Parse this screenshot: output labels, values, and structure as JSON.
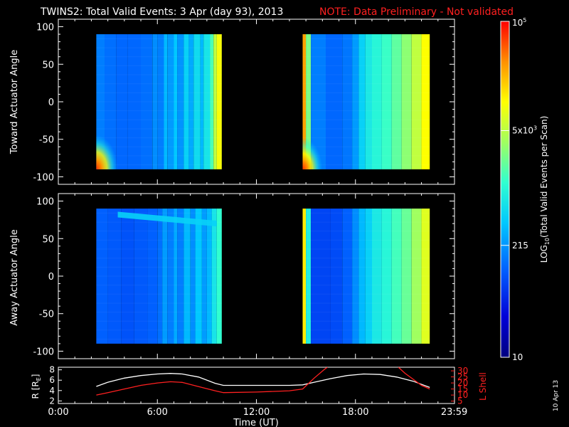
{
  "header": {
    "title": "TWINS2: Total Valid Events:  3 Apr (day  93), 2013",
    "note": "NOTE: Data Preliminary - Not validated",
    "title_color": "#ffffff",
    "note_color": "#ff2020"
  },
  "footer": {
    "date_stamp": "10 Apr 13"
  },
  "chart_data": [
    {
      "type": "heatmap",
      "panel": "toward",
      "ylabel": "Toward Actuator Angle",
      "ylim": [
        -110,
        110
      ],
      "yticks": [
        100,
        50,
        0,
        -50,
        -100
      ],
      "ytick_labels": [
        "100",
        "50",
        "0",
        "-50",
        "-100"
      ],
      "xlim_hours": [
        0,
        24
      ],
      "data_extent": {
        "angle_min": -90,
        "angle_max": 90
      },
      "segments": [
        {
          "start_h": 2.3,
          "end_h": 9.9,
          "columns": [
            [
              2.3,
              0.3
            ],
            [
              2.8,
              0.28
            ],
            [
              3.5,
              0.27
            ],
            [
              4.2,
              0.27
            ],
            [
              5.0,
              0.28
            ],
            [
              5.7,
              0.32
            ],
            [
              6.0,
              0.3
            ],
            [
              6.4,
              0.38
            ],
            [
              6.6,
              0.34
            ],
            [
              7.0,
              0.4
            ],
            [
              7.2,
              0.33
            ],
            [
              7.6,
              0.42
            ],
            [
              7.9,
              0.36
            ],
            [
              8.2,
              0.44
            ],
            [
              8.6,
              0.38
            ],
            [
              8.8,
              0.46
            ],
            [
              9.2,
              0.55
            ],
            [
              9.4,
              0.68
            ],
            [
              9.6,
              0.75
            ]
          ],
          "low_angle_enhancement": {
            "start_h": 2.3,
            "end_h": 3.6,
            "peak_value": 0.92
          }
        },
        {
          "start_h": 14.8,
          "end_h": 22.5,
          "columns": [
            [
              14.8,
              0.86
            ],
            [
              15.0,
              0.6
            ],
            [
              15.3,
              0.3
            ],
            [
              16.2,
              0.27
            ],
            [
              17.2,
              0.29
            ],
            [
              17.8,
              0.34
            ],
            [
              18.2,
              0.42
            ],
            [
              18.6,
              0.47
            ],
            [
              19.0,
              0.5
            ],
            [
              19.6,
              0.53
            ],
            [
              20.2,
              0.57
            ],
            [
              20.8,
              0.62
            ],
            [
              21.4,
              0.68
            ],
            [
              22.0,
              0.76
            ]
          ],
          "low_angle_enhancement": {
            "start_h": 14.8,
            "end_h": 16.0,
            "peak_value": 0.88
          }
        }
      ]
    },
    {
      "type": "heatmap",
      "panel": "away",
      "ylabel": "Away Actuator Angle",
      "ylim": [
        -110,
        110
      ],
      "yticks": [
        100,
        50,
        0,
        -50,
        -100
      ],
      "ytick_labels": [
        "100",
        "50",
        "0",
        "-50",
        "-100"
      ],
      "xlim_hours": [
        0,
        24
      ],
      "data_extent": {
        "angle_min": -90,
        "angle_max": 90
      },
      "segments": [
        {
          "start_h": 2.3,
          "end_h": 9.9,
          "columns": [
            [
              2.3,
              0.26
            ],
            [
              3.0,
              0.25
            ],
            [
              3.8,
              0.24
            ],
            [
              4.6,
              0.25
            ],
            [
              5.4,
              0.26
            ],
            [
              6.0,
              0.28
            ],
            [
              6.3,
              0.34
            ],
            [
              6.6,
              0.3
            ],
            [
              7.0,
              0.36
            ],
            [
              7.2,
              0.3
            ],
            [
              7.6,
              0.38
            ],
            [
              8.0,
              0.32
            ],
            [
              8.3,
              0.4
            ],
            [
              8.7,
              0.34
            ],
            [
              9.0,
              0.38
            ],
            [
              9.3,
              0.46
            ],
            [
              9.6,
              0.52
            ]
          ],
          "high_angle_band": {
            "start_h": 3.6,
            "end_h": 9.6,
            "angle_start": 82,
            "angle_end": 70,
            "value": 0.42
          }
        },
        {
          "start_h": 14.8,
          "end_h": 22.5,
          "columns": [
            [
              14.8,
              0.78
            ],
            [
              15.0,
              0.48
            ],
            [
              15.3,
              0.22
            ],
            [
              16.5,
              0.23
            ],
            [
              17.2,
              0.26
            ],
            [
              17.8,
              0.32
            ],
            [
              18.2,
              0.38
            ],
            [
              18.6,
              0.42
            ],
            [
              19.0,
              0.47
            ],
            [
              19.6,
              0.5
            ],
            [
              20.2,
              0.54
            ],
            [
              20.8,
              0.58
            ],
            [
              21.4,
              0.64
            ],
            [
              22.0,
              0.72
            ]
          ]
        }
      ]
    },
    {
      "type": "line",
      "panel": "orbit",
      "ylabel_left": "R [R",
      "ylabel_left_sub": "E",
      "ylabel_left_end": "]",
      "ylabel_right": "L Shell",
      "ylim_left": [
        1.5,
        8.5
      ],
      "yticks_left": [
        8,
        6,
        4,
        2
      ],
      "ylim_right": [
        3,
        33
      ],
      "yticks_right": [
        30,
        25,
        20,
        15,
        10,
        5
      ],
      "xlabel": "Time (UT)",
      "xtick_labels": [
        "0:00",
        "6:00",
        "12:00",
        "18:00",
        "23:59"
      ],
      "xtick_hours": [
        0,
        6,
        12,
        18,
        23.983
      ],
      "series": [
        {
          "axis": "left",
          "color": "#ffffff",
          "x": [
            2.3,
            3.0,
            4.0,
            5.0,
            6.0,
            6.8,
            7.5,
            8.5,
            9.5,
            10.0,
            12.0,
            14.0,
            14.8,
            15.5,
            16.5,
            17.5,
            18.5,
            19.5,
            20.5,
            21.5,
            22.5
          ],
          "y": [
            4.8,
            5.6,
            6.4,
            6.9,
            7.2,
            7.3,
            7.2,
            6.6,
            5.4,
            5.0,
            5.0,
            5.0,
            5.1,
            5.6,
            6.3,
            6.9,
            7.2,
            7.1,
            6.6,
            5.8,
            4.6
          ]
        },
        {
          "axis": "right",
          "color": "#ff2020",
          "x": [
            2.3,
            3.0,
            4.0,
            5.0,
            6.0,
            6.8,
            7.5,
            8.5,
            9.5,
            10.0,
            12.0,
            14.0,
            14.8,
            15.5,
            16.1,
            16.3
          ],
          "y": [
            10.0,
            12.0,
            15.0,
            18.0,
            20.0,
            21.0,
            20.5,
            17.0,
            13.5,
            12.0,
            12.5,
            13.5,
            15.0,
            24.0,
            31.0,
            33.0
          ]
        },
        {
          "axis": "right",
          "color": "#ff2020",
          "x": [
            20.6,
            21.0,
            21.5,
            22.0,
            22.5
          ],
          "y": [
            33.0,
            28.0,
            23.0,
            18.0,
            15.0
          ]
        }
      ]
    },
    {
      "type": "colorbar",
      "label": "LOG",
      "label_sub": "10",
      "label_rest": "(Total Valid  Events per Scan)",
      "scale": "log",
      "range": [
        10,
        100000
      ],
      "ticks": [
        {
          "value": 100000,
          "base": "10",
          "exp": "5"
        },
        {
          "value": 5000,
          "base": "5x10",
          "exp": "3"
        },
        {
          "value": 215,
          "base": "215",
          "exp": ""
        },
        {
          "value": 10,
          "base": "10",
          "exp": ""
        }
      ],
      "colormap": "rainbow (dark blue → blue → cyan → green → yellow → orange → red)"
    }
  ]
}
